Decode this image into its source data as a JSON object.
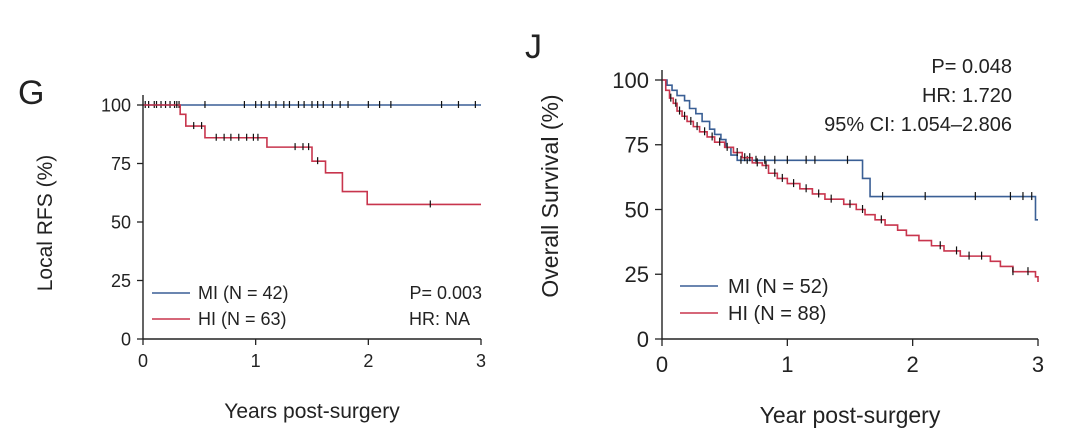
{
  "colors": {
    "mi": "#3a5f95",
    "hi": "#c8354d",
    "axis": "#222222",
    "tick_mark": "#111111"
  },
  "chart_data": [
    {
      "type": "line",
      "panel_label": "G",
      "xlabel": "Years post-surgery",
      "ylabel": "Local RFS (%)",
      "xlim": [
        0,
        3
      ],
      "ylim": [
        0,
        100
      ],
      "xticks": [
        0,
        1,
        2,
        3
      ],
      "yticks": [
        0,
        25,
        50,
        75,
        100
      ],
      "grid": false,
      "legend_position": "bottom-left",
      "annotations": [
        "P= 0.003",
        "HR: NA"
      ],
      "series": [
        {
          "name": "MI (N = 42)",
          "color": "mi",
          "steps": [
            [
              0,
              100
            ],
            [
              3,
              100
            ]
          ],
          "censors": [
            0.02,
            0.05,
            0.1,
            0.12,
            0.16,
            0.2,
            0.24,
            0.28,
            0.32,
            0.55,
            0.9,
            1.0,
            1.05,
            1.12,
            1.18,
            1.25,
            1.3,
            1.38,
            1.43,
            1.5,
            1.55,
            1.6,
            1.68,
            1.75,
            1.82,
            2.0,
            2.1,
            2.2,
            2.65,
            2.8,
            2.95
          ]
        },
        {
          "name": "HI (N = 63)",
          "color": "hi",
          "steps": [
            [
              0,
              100
            ],
            [
              0.33,
              100
            ],
            [
              0.33,
              96
            ],
            [
              0.38,
              96
            ],
            [
              0.38,
              91
            ],
            [
              0.55,
              91
            ],
            [
              0.55,
              86
            ],
            [
              1.1,
              86
            ],
            [
              1.1,
              82
            ],
            [
              1.5,
              82
            ],
            [
              1.5,
              76
            ],
            [
              1.62,
              76
            ],
            [
              1.62,
              71
            ],
            [
              1.77,
              71
            ],
            [
              1.77,
              63
            ],
            [
              1.99,
              63
            ],
            [
              1.99,
              57.5
            ],
            [
              3,
              57.5
            ]
          ],
          "censors": [
            0.3,
            0.45,
            0.52,
            0.65,
            0.72,
            0.78,
            0.85,
            0.92,
            0.98,
            1.02,
            1.35,
            1.42,
            1.47,
            1.55,
            2.55
          ]
        }
      ]
    },
    {
      "type": "line",
      "panel_label": "J",
      "xlabel": "Year post-surgery",
      "ylabel": "Overall Survival (%)",
      "xlim": [
        0,
        3
      ],
      "ylim": [
        0,
        100
      ],
      "xticks": [
        0,
        1,
        2,
        3
      ],
      "yticks": [
        0,
        25,
        50,
        75,
        100
      ],
      "grid": false,
      "legend_position": "bottom-left",
      "annotations": [
        "P= 0.048",
        "HR: 1.720",
        "95% CI: 1.054–2.806"
      ],
      "series": [
        {
          "name": "MI (N = 52)",
          "color": "mi",
          "steps": [
            [
              0,
              100
            ],
            [
              0.04,
              100
            ],
            [
              0.04,
              98
            ],
            [
              0.08,
              98
            ],
            [
              0.08,
              96
            ],
            [
              0.12,
              96
            ],
            [
              0.12,
              94
            ],
            [
              0.18,
              94
            ],
            [
              0.18,
              92
            ],
            [
              0.22,
              92
            ],
            [
              0.22,
              89
            ],
            [
              0.27,
              89
            ],
            [
              0.27,
              87
            ],
            [
              0.32,
              87
            ],
            [
              0.32,
              84
            ],
            [
              0.38,
              84
            ],
            [
              0.38,
              81
            ],
            [
              0.42,
              81
            ],
            [
              0.42,
              79
            ],
            [
              0.47,
              79
            ],
            [
              0.47,
              77
            ],
            [
              0.51,
              77
            ],
            [
              0.51,
              74
            ],
            [
              0.55,
              74
            ],
            [
              0.55,
              71
            ],
            [
              0.6,
              71
            ],
            [
              0.6,
              69
            ],
            [
              1.6,
              69
            ],
            [
              1.6,
              62
            ],
            [
              1.66,
              62
            ],
            [
              1.66,
              55
            ],
            [
              2.98,
              55
            ],
            [
              2.98,
              46
            ],
            [
              3,
              46
            ]
          ],
          "censors": [
            0.63,
            0.68,
            0.75,
            0.82,
            0.9,
            1.0,
            1.15,
            1.22,
            1.48,
            1.76,
            2.1,
            2.5,
            2.78,
            2.88,
            2.95
          ]
        },
        {
          "name": "HI (N = 88)",
          "color": "hi",
          "steps": [
            [
              0,
              100
            ],
            [
              0.03,
              96
            ],
            [
              0.06,
              93
            ],
            [
              0.09,
              91
            ],
            [
              0.12,
              88
            ],
            [
              0.16,
              86
            ],
            [
              0.2,
              84
            ],
            [
              0.25,
              82
            ],
            [
              0.3,
              80
            ],
            [
              0.36,
              78
            ],
            [
              0.42,
              76
            ],
            [
              0.5,
              74
            ],
            [
              0.57,
              72
            ],
            [
              0.64,
              70
            ],
            [
              0.72,
              68
            ],
            [
              0.8,
              67
            ],
            [
              0.85,
              64
            ],
            [
              0.92,
              62
            ],
            [
              1.0,
              60
            ],
            [
              1.1,
              58
            ],
            [
              1.2,
              56
            ],
            [
              1.3,
              54
            ],
            [
              1.45,
              52
            ],
            [
              1.55,
              50
            ],
            [
              1.62,
              48
            ],
            [
              1.7,
              46
            ],
            [
              1.78,
              44
            ],
            [
              1.88,
              42
            ],
            [
              1.95,
              40
            ],
            [
              2.05,
              38
            ],
            [
              2.15,
              36
            ],
            [
              2.25,
              34
            ],
            [
              2.38,
              32
            ],
            [
              2.62,
              30
            ],
            [
              2.7,
              28
            ],
            [
              2.8,
              26
            ],
            [
              2.98,
              24
            ],
            [
              3,
              22
            ]
          ],
          "censors": [
            0.07,
            0.11,
            0.14,
            0.18,
            0.23,
            0.28,
            0.34,
            0.4,
            0.46,
            0.52,
            0.6,
            0.66,
            0.7,
            0.76,
            0.83,
            0.9,
            0.96,
            1.05,
            1.15,
            1.25,
            1.35,
            1.5,
            1.6,
            1.75,
            2.22,
            2.35,
            2.45,
            2.55,
            2.8,
            2.92
          ]
        }
      ]
    }
  ]
}
